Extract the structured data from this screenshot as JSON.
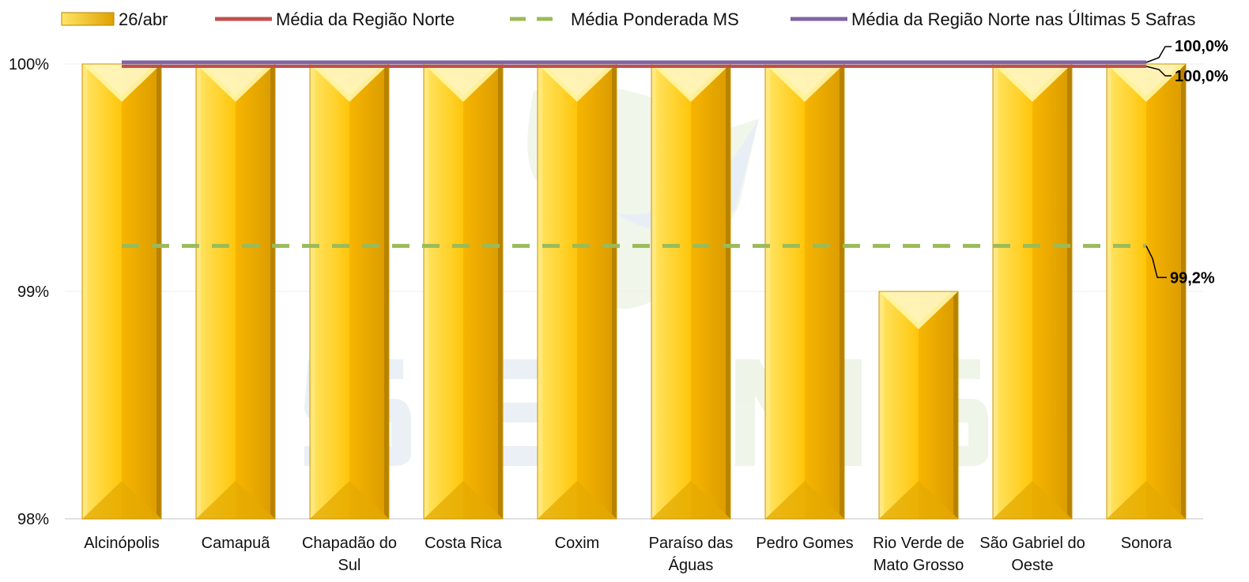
{
  "chart_data": {
    "type": "bar",
    "categories": [
      [
        "Alcinópolis"
      ],
      [
        "Camapuã"
      ],
      [
        "Chapadão do",
        "Sul"
      ],
      [
        "Costa Rica"
      ],
      [
        "Coxim"
      ],
      [
        "Paraíso das",
        "Águas"
      ],
      [
        "Pedro Gomes"
      ],
      [
        "Rio Verde de",
        "Mato Grosso"
      ],
      [
        "São Gabriel do",
        "Oeste"
      ],
      [
        "Sonora"
      ]
    ],
    "series": [
      {
        "name": "26/abr",
        "kind": "bar",
        "color": "#FFC000",
        "values": [
          100,
          100,
          100,
          100,
          100,
          100,
          100,
          99,
          100,
          100
        ]
      },
      {
        "name": "Média da Região Norte",
        "kind": "line",
        "color": "#C0504D",
        "value": 100.0
      },
      {
        "name": "Média Ponderada MS",
        "kind": "dashed-line",
        "color": "#9BBB59",
        "value": 99.2
      },
      {
        "name": "Média da Região Norte nas Últimas 5 Safras",
        "kind": "line",
        "color": "#8064A2",
        "value": 100.0
      }
    ],
    "yticks": [
      "98%",
      "99%",
      "100%"
    ],
    "ytick_values": [
      98,
      99,
      100
    ],
    "ylim": [
      98,
      100
    ],
    "annotations": [
      "100,0%",
      "100,0%",
      "99,2%"
    ],
    "legend_position": "top",
    "grid": true
  }
}
